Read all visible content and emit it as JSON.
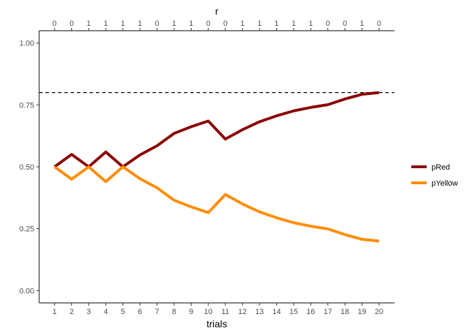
{
  "chart_data": {
    "type": "line",
    "xlabel": "trials",
    "ylabel": "",
    "top_axis_title": "r",
    "x": [
      1,
      2,
      3,
      4,
      5,
      6,
      7,
      8,
      9,
      10,
      11,
      12,
      13,
      14,
      15,
      16,
      17,
      18,
      19,
      20
    ],
    "x_tick_labels": [
      "1",
      "2",
      "3",
      "4",
      "5",
      "6",
      "7",
      "8",
      "9",
      "10",
      "11",
      "12",
      "13",
      "14",
      "15",
      "16",
      "17",
      "18",
      "19",
      "20"
    ],
    "top_tick_labels": [
      "0",
      "0",
      "1",
      "1",
      "1",
      "1",
      "0",
      "1",
      "1",
      "0",
      "0",
      "1",
      "1",
      "1",
      "1",
      "1",
      "0",
      "0",
      "1",
      "0"
    ],
    "y_ticks": [
      0,
      0.25,
      0.5,
      0.75,
      1
    ],
    "y_tick_labels": [
      "0.00",
      "0.25",
      "0.50",
      "0.75",
      "1.00"
    ],
    "xlim": [
      0.1,
      20.9
    ],
    "ylim": [
      -0.05,
      1.05
    ],
    "reference_line": {
      "y": 0.8,
      "style": "dashed",
      "color": "#000000"
    },
    "grid": false,
    "legend_position": "right",
    "series": [
      {
        "name": "pRed",
        "color": "#8B0000",
        "values": [
          0.5,
          0.55,
          0.5,
          0.56,
          0.5,
          0.548,
          0.585,
          0.635,
          0.662,
          0.685,
          0.612,
          0.65,
          0.682,
          0.706,
          0.726,
          0.74,
          0.751,
          0.774,
          0.793,
          0.8
        ]
      },
      {
        "name": "pYellow",
        "color": "#FF8C00",
        "values": [
          0.5,
          0.45,
          0.5,
          0.44,
          0.5,
          0.452,
          0.415,
          0.365,
          0.338,
          0.315,
          0.388,
          0.35,
          0.318,
          0.294,
          0.274,
          0.26,
          0.249,
          0.226,
          0.207,
          0.2
        ]
      }
    ]
  }
}
